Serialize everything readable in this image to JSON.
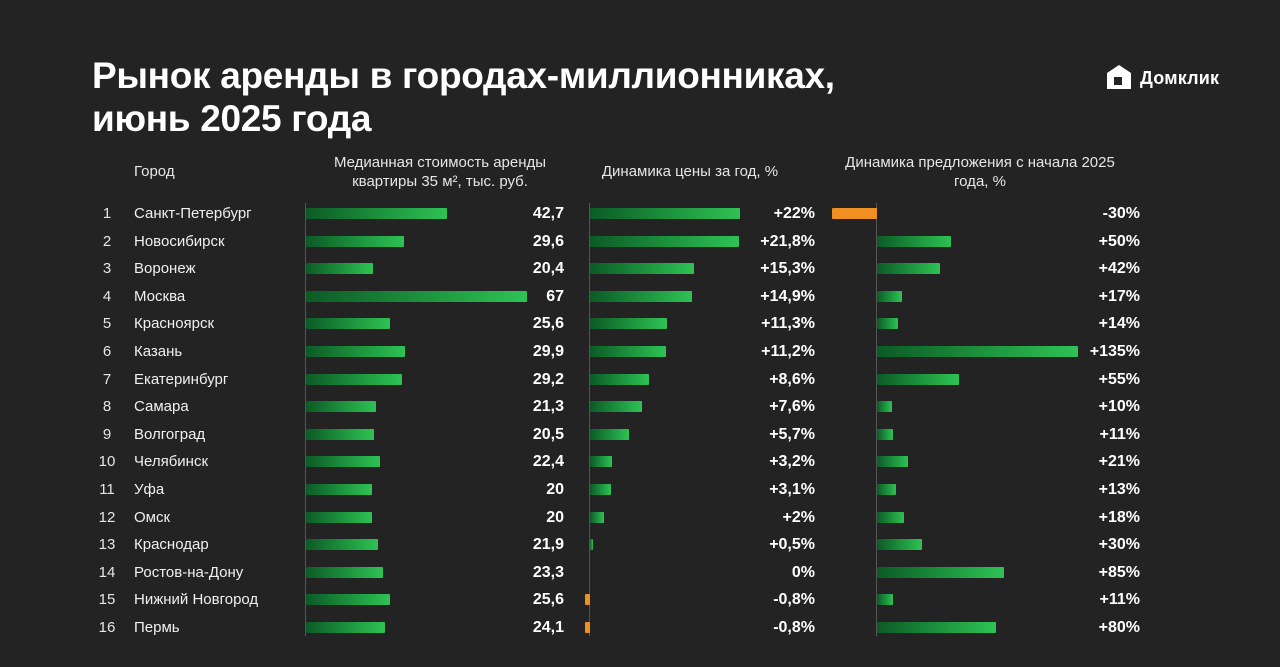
{
  "title": {
    "line1": "Рынок аренды в городах-миллионниках,",
    "line2": "июнь 2025 года"
  },
  "logo": {
    "text": "Домклик",
    "icon": "domclick-house-icon"
  },
  "columns": {
    "city": "Город",
    "rent_line1": "Медианная стоимость аренды",
    "rent_line2": "квартиры 35 м², тыс. руб.",
    "price": "Динамика цены за год, %",
    "supply_line1": "Динамика предложения с начала 2025",
    "supply_line2": "года, %"
  },
  "colors": {
    "positive": "#2ec255",
    "negative": "#f09022",
    "background": "#232323"
  },
  "chart_data": {
    "type": "bar",
    "categories": [
      "Санкт-Петербург",
      "Новосибирск",
      "Воронеж",
      "Москва",
      "Красноярск",
      "Казань",
      "Екатеринбург",
      "Самара",
      "Волгоград",
      "Челябинск",
      "Уфа",
      "Омск",
      "Краснодар",
      "Ростов-на-Дону",
      "Нижний Новгород",
      "Пермь"
    ],
    "ranks": [
      "1",
      "2",
      "3",
      "4",
      "5",
      "6",
      "7",
      "8",
      "9",
      "10",
      "11",
      "12",
      "13",
      "14",
      "15",
      "16"
    ],
    "series": [
      {
        "name": "Медианная стоимость аренды квартиры 35 м², тыс. руб.",
        "values": [
          42.7,
          29.6,
          20.4,
          67,
          25.6,
          29.9,
          29.2,
          21.3,
          20.5,
          22.4,
          20,
          20,
          21.9,
          23.3,
          25.6,
          24.1
        ],
        "labels": [
          "42,7",
          "29,6",
          "20,4",
          "67",
          "25,6",
          "29,9",
          "29,2",
          "21,3",
          "20,5",
          "22,4",
          "20",
          "20",
          "21,9",
          "23,3",
          "25,6",
          "24,1"
        ]
      },
      {
        "name": "Динамика цены за год, %",
        "values": [
          22,
          21.8,
          15.3,
          14.9,
          11.3,
          11.2,
          8.6,
          7.6,
          5.7,
          3.2,
          3.1,
          2,
          0.5,
          0,
          -0.8,
          -0.8
        ],
        "labels": [
          "+22%",
          "+21,8%",
          "+15,3%",
          "+14,9%",
          "+11,3%",
          "+11,2%",
          "+8,6%",
          "+7,6%",
          "+5,7%",
          "+3,2%",
          "+3,1%",
          "+2%",
          "+0,5%",
          "0%",
          "-0,8%",
          "-0,8%"
        ]
      },
      {
        "name": "Динамика предложения с начала 2025 года, %",
        "values": [
          -30,
          50,
          42,
          17,
          14,
          135,
          55,
          10,
          11,
          21,
          13,
          18,
          30,
          85,
          11,
          80
        ],
        "labels": [
          "-30%",
          "+50%",
          "+42%",
          "+17%",
          "+14%",
          "+135%",
          "+55%",
          "+10%",
          "+11%",
          "+21%",
          "+13%",
          "+18%",
          "+30%",
          "+85%",
          "+11%",
          "+80%"
        ]
      }
    ]
  }
}
